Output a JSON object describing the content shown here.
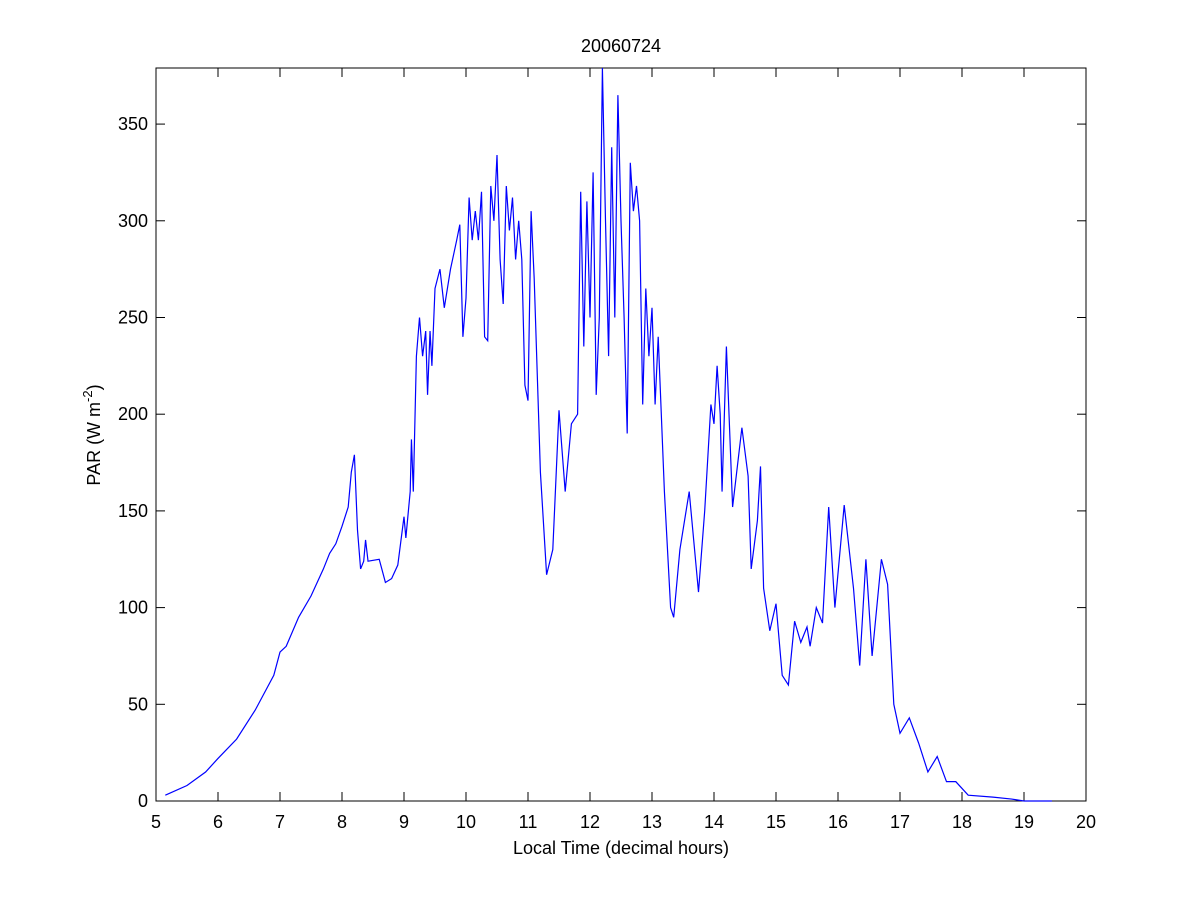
{
  "chart_data": {
    "type": "line",
    "title": "20060724",
    "xlabel": "Local Time (decimal hours)",
    "ylabel": [
      "PAR (W m",
      "-2",
      ")"
    ],
    "xlim": [
      5,
      20
    ],
    "ylim": [
      0,
      379
    ],
    "xticks": [
      5,
      6,
      7,
      8,
      9,
      10,
      11,
      12,
      13,
      14,
      15,
      16,
      17,
      18,
      19,
      20
    ],
    "yticks": [
      0,
      50,
      100,
      150,
      200,
      250,
      300,
      350
    ],
    "grid": false,
    "series": [
      {
        "color": "#0000ff",
        "x": [
          5.15,
          5.5,
          5.8,
          6.0,
          6.3,
          6.6,
          6.9,
          7.0,
          7.1,
          7.3,
          7.5,
          7.7,
          7.8,
          7.9,
          8.0,
          8.1,
          8.15,
          8.2,
          8.25,
          8.3,
          8.35,
          8.38,
          8.42,
          8.6,
          8.7,
          8.8,
          8.9,
          9.0,
          9.03,
          9.1,
          9.12,
          9.15,
          9.2,
          9.25,
          9.3,
          9.35,
          9.38,
          9.42,
          9.45,
          9.5,
          9.58,
          9.65,
          9.75,
          9.85,
          9.9,
          9.95,
          10.0,
          10.05,
          10.1,
          10.15,
          10.2,
          10.25,
          10.3,
          10.35,
          10.4,
          10.45,
          10.5,
          10.55,
          10.6,
          10.65,
          10.7,
          10.75,
          10.8,
          10.85,
          10.9,
          10.95,
          11.0,
          11.05,
          11.1,
          11.2,
          11.3,
          11.4,
          11.5,
          11.6,
          11.7,
          11.8,
          11.85,
          11.9,
          11.95,
          12.0,
          12.05,
          12.1,
          12.15,
          12.2,
          12.25,
          12.3,
          12.35,
          12.4,
          12.45,
          12.5,
          12.55,
          12.6,
          12.65,
          12.7,
          12.75,
          12.8,
          12.85,
          12.9,
          12.95,
          13.0,
          13.05,
          13.1,
          13.2,
          13.3,
          13.35,
          13.45,
          13.6,
          13.75,
          13.85,
          13.95,
          14.0,
          14.05,
          14.1,
          14.13,
          14.2,
          14.3,
          14.45,
          14.55,
          14.6,
          14.7,
          14.75,
          14.8,
          14.9,
          15.0,
          15.1,
          15.2,
          15.3,
          15.4,
          15.5,
          15.55,
          15.65,
          15.75,
          15.85,
          15.95,
          16.1,
          16.25,
          16.35,
          16.45,
          16.55,
          16.7,
          16.8,
          16.9,
          17.0,
          17.15,
          17.3,
          17.45,
          17.6,
          17.75,
          17.9,
          18.1,
          18.5,
          18.8,
          19.0,
          19.45
        ],
        "values": [
          3,
          8,
          15,
          22,
          32,
          47,
          65,
          77,
          80,
          95,
          106,
          120,
          128,
          133,
          142,
          152,
          170,
          179,
          140,
          120,
          124,
          135,
          124,
          125,
          113,
          115,
          122,
          147,
          136,
          160,
          187,
          160,
          230,
          250,
          230,
          243,
          210,
          243,
          225,
          265,
          275,
          255,
          275,
          290,
          298,
          240,
          260,
          312,
          290,
          305,
          290,
          315,
          240,
          238,
          318,
          300,
          334,
          280,
          257,
          318,
          295,
          312,
          280,
          300,
          280,
          215,
          207,
          305,
          270,
          170,
          117,
          130,
          202,
          160,
          195,
          200,
          315,
          235,
          310,
          250,
          325,
          210,
          250,
          379,
          300,
          230,
          338,
          250,
          365,
          300,
          250,
          190,
          330,
          305,
          318,
          300,
          205,
          265,
          230,
          255,
          205,
          240,
          160,
          100,
          95,
          130,
          160,
          108,
          150,
          205,
          195,
          225,
          200,
          160,
          235,
          152,
          193,
          168,
          120,
          145,
          173,
          110,
          88,
          102,
          65,
          60,
          93,
          82,
          90,
          80,
          100,
          92,
          152,
          100,
          153,
          110,
          70,
          125,
          75,
          125,
          112,
          50,
          35,
          43,
          30,
          15,
          23,
          10,
          10,
          3,
          2,
          1,
          0,
          0
        ]
      }
    ]
  }
}
